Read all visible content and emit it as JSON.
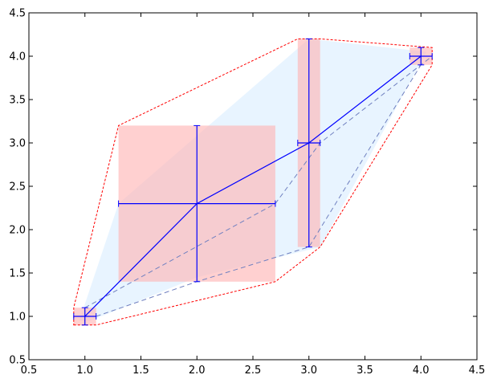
{
  "chart_data": {
    "type": "scatter",
    "title": "",
    "xlabel": "",
    "ylabel": "",
    "xlim": [
      0.5,
      4.5
    ],
    "ylim": [
      0.5,
      4.5
    ],
    "xticks": [
      "0.5",
      "1.0",
      "1.5",
      "2.0",
      "2.5",
      "3.0",
      "3.5",
      "4.0",
      "4.5"
    ],
    "yticks": [
      "0.5",
      "1.0",
      "1.5",
      "2.0",
      "2.5",
      "3.0",
      "3.5",
      "4.0",
      "4.5"
    ],
    "grid": false,
    "legend": "none",
    "points": [
      {
        "x": 1.0,
        "y": 1.0,
        "xerr": 0.1,
        "yerr": 0.1
      },
      {
        "x": 2.0,
        "y": 2.3,
        "xerr": 0.7,
        "yerr": 0.9
      },
      {
        "x": 3.0,
        "y": 3.0,
        "xerr": 0.1,
        "yerr": 1.2
      },
      {
        "x": 4.0,
        "y": 4.0,
        "xerr": 0.1,
        "yerr": 0.1
      }
    ],
    "dashed_bounds": [
      [
        [
          1.0,
          1.1
        ],
        [
          2.7,
          2.3
        ],
        [
          3.1,
          3.0
        ],
        [
          4.1,
          4.0
        ]
      ],
      [
        [
          1.1,
          1.0
        ],
        [
          2.0,
          1.4
        ],
        [
          3.0,
          1.8
        ],
        [
          4.0,
          3.9
        ]
      ]
    ],
    "colors": {
      "line": "#0000ff",
      "error_rect": "#ffb0b0",
      "hull_fill": "#cce6ff",
      "hull_outline": "#ff0000",
      "bound_lines": "#7080c0"
    }
  }
}
